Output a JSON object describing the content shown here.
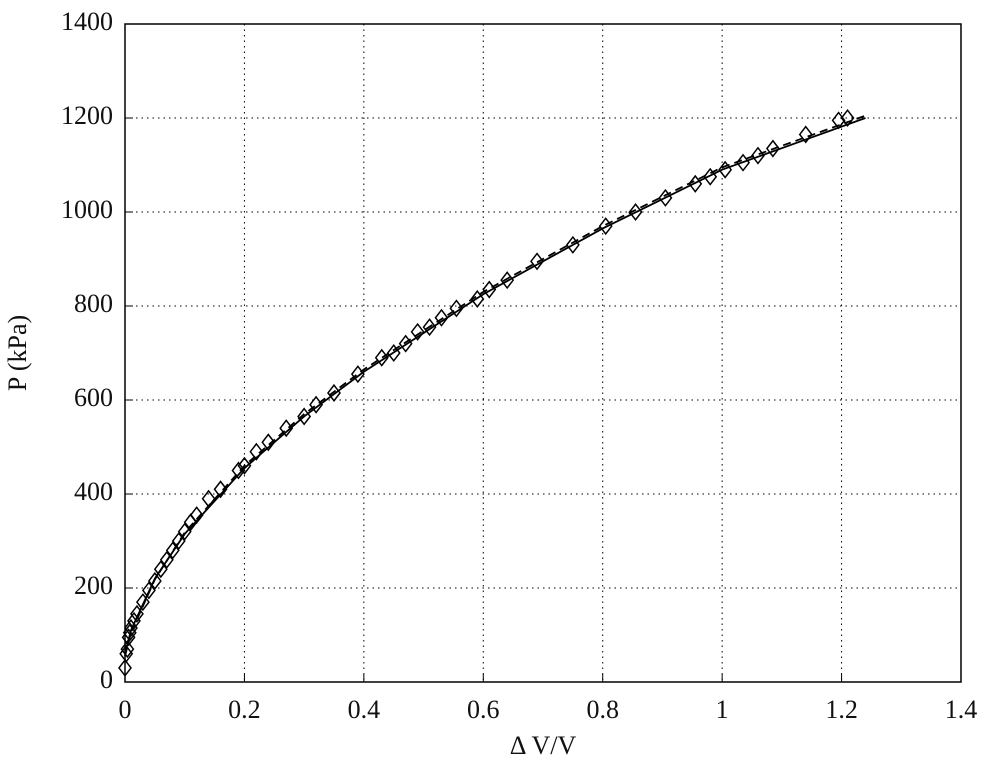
{
  "chart_data": {
    "type": "scatter",
    "xlabel": "Δ V/V",
    "ylabel": "P (kPa)",
    "xlim": [
      0,
      1.4
    ],
    "ylim": [
      0,
      1400
    ],
    "xticks": [
      0,
      0.2,
      0.4,
      0.6,
      0.8,
      1,
      1.2,
      1.4
    ],
    "yticks": [
      0,
      200,
      400,
      600,
      800,
      1000,
      1200,
      1400
    ],
    "grid": true,
    "series": [
      {
        "style": "markers",
        "color": "#000000",
        "x": [
          0.0,
          0.002,
          0.004,
          0.006,
          0.008,
          0.01,
          0.015,
          0.02,
          0.03,
          0.04,
          0.05,
          0.06,
          0.07,
          0.08,
          0.09,
          0.1,
          0.11,
          0.12,
          0.14,
          0.16,
          0.19,
          0.2,
          0.22,
          0.24,
          0.27,
          0.3,
          0.32,
          0.35,
          0.39,
          0.43,
          0.45,
          0.47,
          0.49,
          0.51,
          0.53,
          0.555,
          0.59,
          0.61,
          0.64,
          0.69,
          0.75,
          0.805,
          0.855,
          0.905,
          0.955,
          0.98,
          1.005,
          1.035,
          1.06,
          1.085,
          1.14,
          1.195,
          1.21
        ],
        "values": [
          30,
          60,
          70,
          95,
          105,
          115,
          130,
          145,
          170,
          195,
          215,
          240,
          260,
          280,
          300,
          320,
          340,
          355,
          390,
          410,
          450,
          460,
          490,
          510,
          540,
          565,
          590,
          615,
          655,
          690,
          700,
          720,
          745,
          755,
          775,
          795,
          815,
          835,
          855,
          895,
          930,
          970,
          1000,
          1030,
          1060,
          1075,
          1090,
          1105,
          1120,
          1135,
          1165,
          1195,
          1200
        ]
      },
      {
        "style": "solid",
        "color": "#000000",
        "x": [
          0,
          0.01,
          0.05,
          0.1,
          0.2,
          0.3,
          0.4,
          0.6,
          0.8,
          1.0,
          1.24
        ],
        "values": [
          60,
          110,
          220,
          315,
          455,
          565,
          660,
          825,
          965,
          1090,
          1200
        ]
      },
      {
        "style": "dashed",
        "color": "#000000",
        "x": [
          0,
          0.01,
          0.05,
          0.1,
          0.2,
          0.3,
          0.4,
          0.6,
          0.8,
          1.0,
          1.24
        ],
        "values": [
          55,
          105,
          218,
          318,
          460,
          570,
          665,
          830,
          970,
          1095,
          1205
        ]
      }
    ]
  }
}
